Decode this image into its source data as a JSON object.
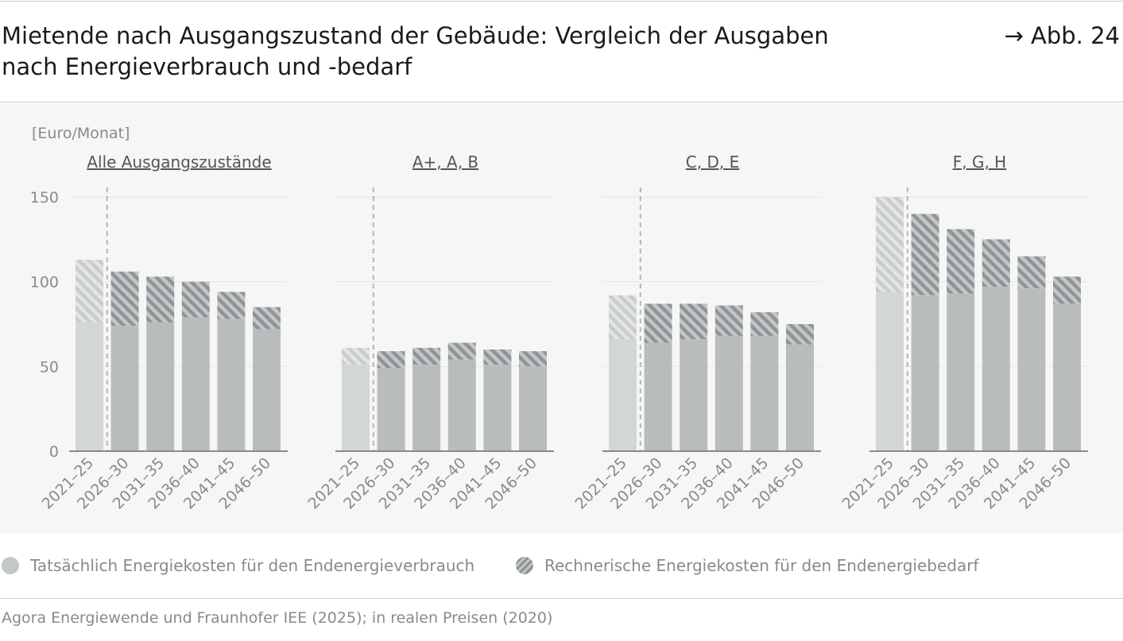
{
  "header": {
    "title_line1": "Mietende nach Ausgangszustand der Gebäude: Vergleich der Ausgaben",
    "title_line2": "nach Energieverbrauch und -bedarf",
    "figure_ref": "→ Abb. 24"
  },
  "chart_data": {
    "type": "bar",
    "unit_label": "[Euro/Monat]",
    "ylim": [
      0,
      150
    ],
    "yticks": [
      0,
      50,
      100,
      150
    ],
    "grid": true,
    "categories": [
      "2021–25",
      "2026–30",
      "2031–35",
      "2036–40",
      "2041–45",
      "2046–50"
    ],
    "reference_marker": "dashed vertical line between 2021–25 and 2026–30",
    "panels": [
      {
        "title": "Alle Ausgangszustände",
        "series": [
          {
            "name": "Tatsächlich Energiekosten für den Endenergieverbrauch",
            "values": [
              76,
              74,
              76,
              79,
              78,
              72
            ]
          },
          {
            "name": "Rechnerische Energiekosten für den Endenergiebedarf",
            "values": [
              113,
              106,
              103,
              100,
              94,
              85
            ]
          }
        ]
      },
      {
        "title": "A+, A, B",
        "series": [
          {
            "name": "Tatsächlich Energiekosten für den Endenergieverbrauch",
            "values": [
              51,
              49,
              51,
              54,
              51,
              50
            ]
          },
          {
            "name": "Rechnerische Energiekosten für den Endenergiebedarf",
            "values": [
              61,
              59,
              61,
              64,
              60,
              59
            ]
          }
        ]
      },
      {
        "title": "C, D, E",
        "series": [
          {
            "name": "Tatsächlich Energiekosten für den Endenergieverbrauch",
            "values": [
              66,
              64,
              66,
              68,
              68,
              63
            ]
          },
          {
            "name": "Rechnerische Energiekosten für den Endenergiebedarf",
            "values": [
              92,
              87,
              87,
              86,
              82,
              75
            ]
          }
        ]
      },
      {
        "title": "F, G, H",
        "series": [
          {
            "name": "Tatsächlich Energiekosten für den Endenergieverbrauch",
            "values": [
              94,
              92,
              93,
              97,
              96,
              87
            ]
          },
          {
            "name": "Rechnerische Energiekosten für den Endenergiebedarf",
            "values": [
              150,
              140,
              131,
              125,
              115,
              103
            ]
          }
        ]
      }
    ]
  },
  "legend": {
    "items": [
      {
        "label": "Tatsächlich Energiekosten für den Endenergieverbrauch",
        "style": "solid",
        "color": "#c4c7c8"
      },
      {
        "label": "Rechnerische Energiekosten für den Endenergiebedarf",
        "style": "hatched",
        "color": "#8f9496"
      }
    ]
  },
  "colors": {
    "actual_first": "#d3d6d7",
    "actual": "#b8bcbd",
    "hatch_stroke": "#8f9496",
    "hatch_stroke_first": "#c9cccd",
    "axis": "#8a8a8a",
    "grid": "#e6e6e6",
    "text_muted": "#8a8a8a"
  },
  "footer": {
    "source": "Agora Energiewende und Fraunhofer IEE (2025); in realen Preisen (2020)"
  }
}
